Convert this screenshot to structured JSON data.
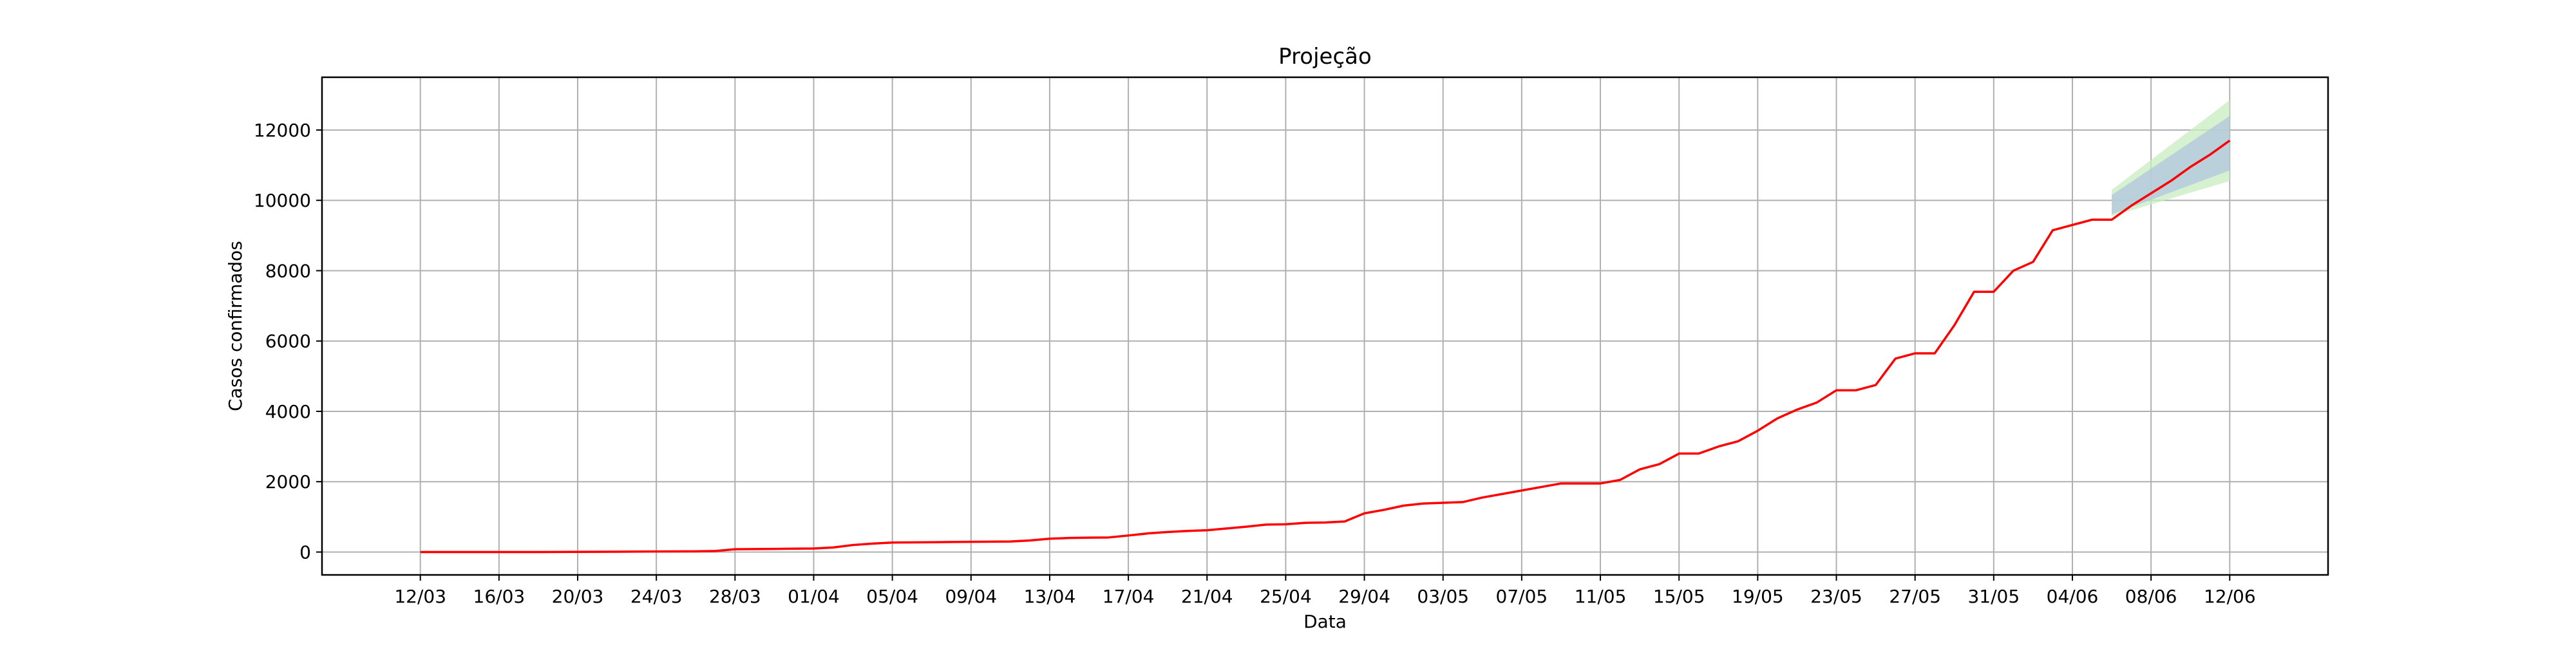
{
  "chart_data": {
    "type": "line",
    "title": "Projeção",
    "xlabel": "Data",
    "ylabel": "Casos confirmados",
    "grid": true,
    "ylim": [
      -650,
      13500
    ],
    "xlim": [
      "2020-03-07",
      "2020-06-17"
    ],
    "x_ticks": [
      "12/03",
      "16/03",
      "20/03",
      "24/03",
      "28/03",
      "01/04",
      "05/04",
      "09/04",
      "13/04",
      "17/04",
      "21/04",
      "25/04",
      "29/04",
      "03/05",
      "07/05",
      "11/05",
      "15/05",
      "19/05",
      "23/05",
      "27/05",
      "31/05",
      "04/06",
      "08/06",
      "12/06"
    ],
    "y_ticks": [
      0,
      2000,
      4000,
      6000,
      8000,
      10000,
      12000
    ],
    "colors": {
      "series": "#ff0000",
      "band_outer": "#c8ecc0",
      "band_inner": "#b0c4de",
      "grid": "#b0b0b0"
    },
    "series": [
      {
        "x": [
          "2020-03-12",
          "2020-03-14",
          "2020-03-16",
          "2020-03-18",
          "2020-03-20",
          "2020-03-22",
          "2020-03-24",
          "2020-03-26",
          "2020-03-27",
          "2020-03-28",
          "2020-03-29",
          "2020-03-30",
          "2020-03-31",
          "2020-04-01",
          "2020-04-02",
          "2020-04-03",
          "2020-04-04",
          "2020-04-05",
          "2020-04-06",
          "2020-04-07",
          "2020-04-08",
          "2020-04-09",
          "2020-04-10",
          "2020-04-11",
          "2020-04-12",
          "2020-04-13",
          "2020-04-14",
          "2020-04-15",
          "2020-04-16",
          "2020-04-17",
          "2020-04-18",
          "2020-04-19",
          "2020-04-20",
          "2020-04-21",
          "2020-04-22",
          "2020-04-23",
          "2020-04-24",
          "2020-04-25",
          "2020-04-26",
          "2020-04-27",
          "2020-04-28",
          "2020-04-29",
          "2020-04-30",
          "2020-05-01",
          "2020-05-02",
          "2020-05-03",
          "2020-05-04",
          "2020-05-05",
          "2020-05-06",
          "2020-05-07",
          "2020-05-08",
          "2020-05-09",
          "2020-05-10",
          "2020-05-11",
          "2020-05-12",
          "2020-05-13",
          "2020-05-14",
          "2020-05-15",
          "2020-05-16",
          "2020-05-17",
          "2020-05-18",
          "2020-05-19",
          "2020-05-20",
          "2020-05-21",
          "2020-05-22",
          "2020-05-23",
          "2020-05-24",
          "2020-05-25",
          "2020-05-26",
          "2020-05-27",
          "2020-05-28",
          "2020-05-29",
          "2020-05-30",
          "2020-05-31",
          "2020-06-01",
          "2020-06-02",
          "2020-06-03",
          "2020-06-04",
          "2020-06-05",
          "2020-06-06",
          "2020-06-07",
          "2020-06-08",
          "2020-06-09",
          "2020-06-10",
          "2020-06-11",
          "2020-06-12"
        ],
        "y": [
          0,
          0,
          0,
          0,
          5,
          10,
          15,
          20,
          30,
          80,
          85,
          90,
          95,
          100,
          130,
          200,
          240,
          270,
          275,
          280,
          285,
          290,
          295,
          300,
          330,
          380,
          400,
          410,
          415,
          470,
          530,
          570,
          600,
          620,
          670,
          720,
          780,
          790,
          830,
          840,
          870,
          1100,
          1200,
          1320,
          1380,
          1400,
          1420,
          1550,
          1650,
          1750,
          1850,
          1950,
          1950,
          1950,
          2050,
          2350,
          2500,
          2800,
          2800,
          3000,
          3150,
          3450,
          3800,
          4050,
          4250,
          4600,
          4600,
          4750,
          5500,
          5650,
          5650,
          6450,
          7400,
          7400,
          8000,
          8250,
          9150,
          9300,
          9450,
          9450,
          9850,
          10200,
          10550,
          10950,
          11300,
          11700
        ]
      }
    ],
    "bands": {
      "x": [
        "2020-06-06",
        "2020-06-12"
      ],
      "outer_low": [
        9550,
        10550
      ],
      "outer_high": [
        10300,
        12850
      ],
      "inner_low": [
        9600,
        10850
      ],
      "inner_high": [
        10150,
        12400
      ]
    }
  }
}
